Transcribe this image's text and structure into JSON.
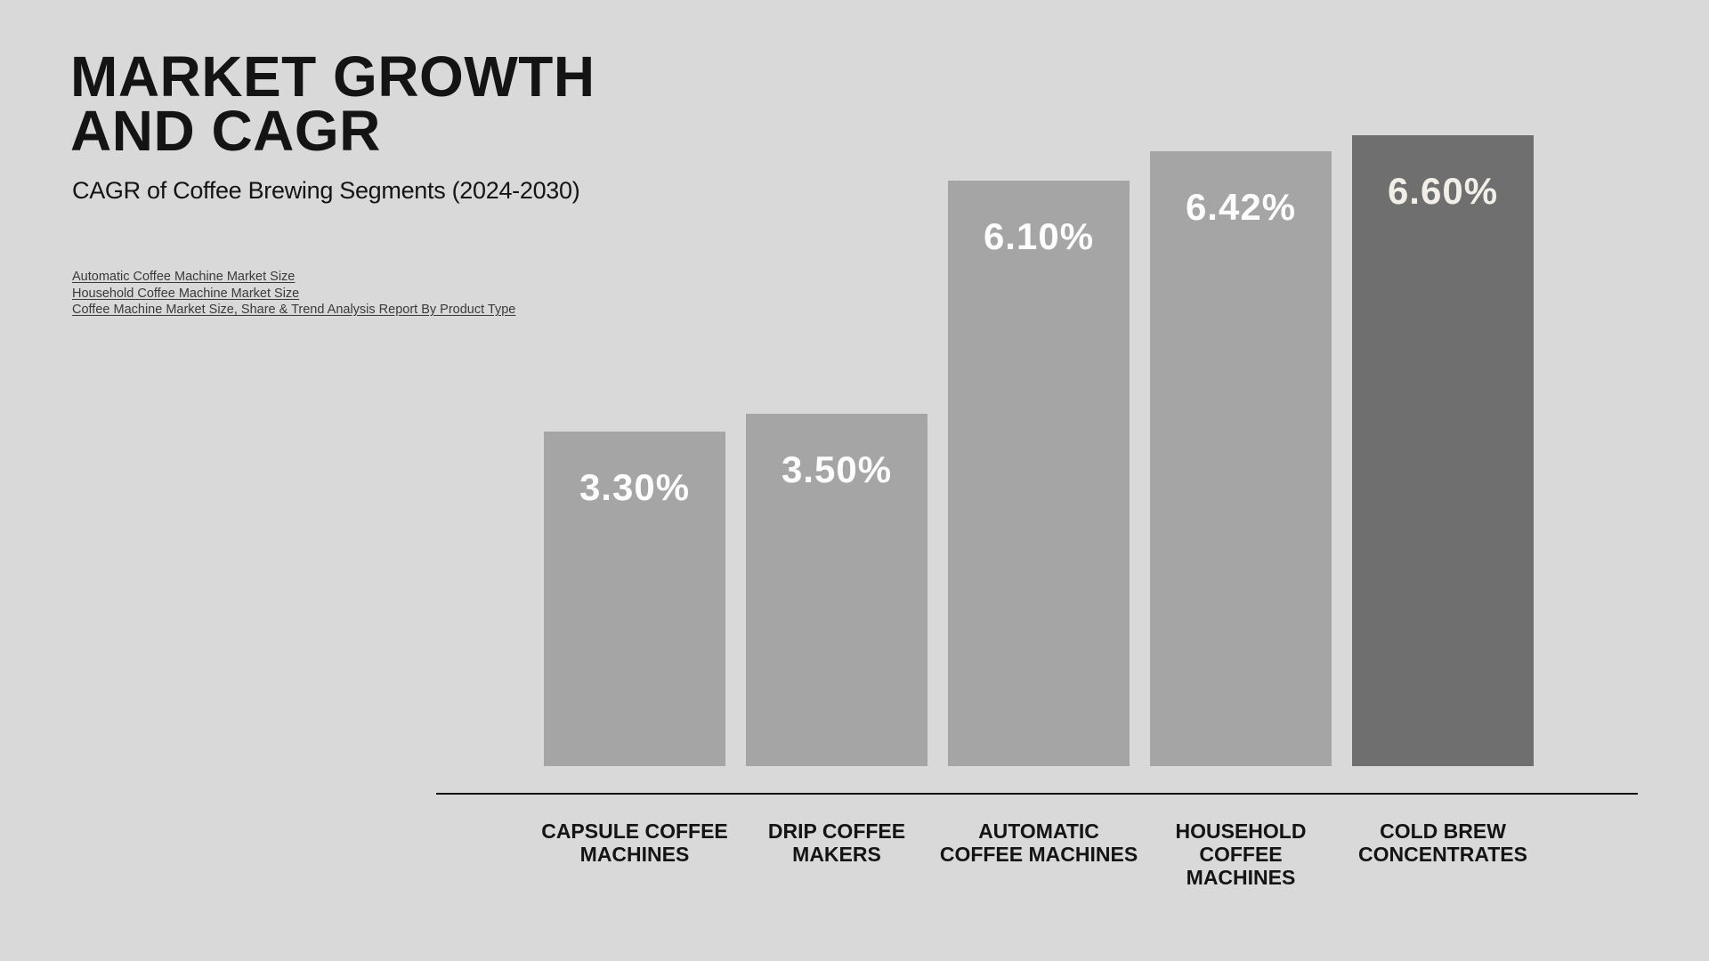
{
  "header": {
    "title": "MARKET GROWTH\nAND CAGR",
    "subtitle": "CAGR of Coffee Brewing Segments (2024-2030)"
  },
  "sources": {
    "links": [
      {
        "label": "Automatic Coffee Machine Market Size"
      },
      {
        "label": "Household Coffee Machine Market Size"
      },
      {
        "label": "Coffee Machine Market Size, Share & Trend Analysis Report By Product Type"
      }
    ]
  },
  "chart_data": {
    "type": "bar",
    "title": "MARKET GROWTH AND CAGR",
    "subtitle": "CAGR of Coffee Brewing Segments (2024-2030)",
    "categories": [
      "CAPSULE COFFEE MACHINES",
      "DRIP COFFEE MAKERS",
      "AUTOMATIC COFFEE MACHINES",
      "HOUSEHOLD COFFEE MACHINES",
      "COLD BREW CONCENTRATES"
    ],
    "values": [
      3.3,
      3.5,
      6.1,
      6.42,
      6.6
    ],
    "unit": "%",
    "ylim": [
      0,
      7
    ],
    "grid": false,
    "legend": "none",
    "value_labels_position": "inside-top",
    "highlighted_category": "COLD BREW CONCENTRATES",
    "bars": [
      {
        "category_display": "CAPSULE COFFEE\nMACHINES",
        "value_label": "3.30%",
        "highlight": false
      },
      {
        "category_display": "DRIP COFFEE\nMAKERS",
        "value_label": "3.50%",
        "highlight": false
      },
      {
        "category_display": "AUTOMATIC\nCOFFEE MACHINES",
        "value_label": "6.10%",
        "highlight": false
      },
      {
        "category_display": "HOUSEHOLD\nCOFFEE\nMACHINES",
        "value_label": "6.42%",
        "highlight": false
      },
      {
        "category_display": "COLD BREW\nCONCENTRATES",
        "value_label": "6.60%",
        "highlight": true
      }
    ]
  },
  "colors": {
    "background": "#d9d9d9",
    "bar": "#a5a5a6",
    "bar_highlight": "#6f6f70",
    "text": "#141414",
    "value_label": "#fdfdfd",
    "value_label_highlight": "#f2efe8",
    "link": "#3a3a3a",
    "axis": "#141414"
  }
}
